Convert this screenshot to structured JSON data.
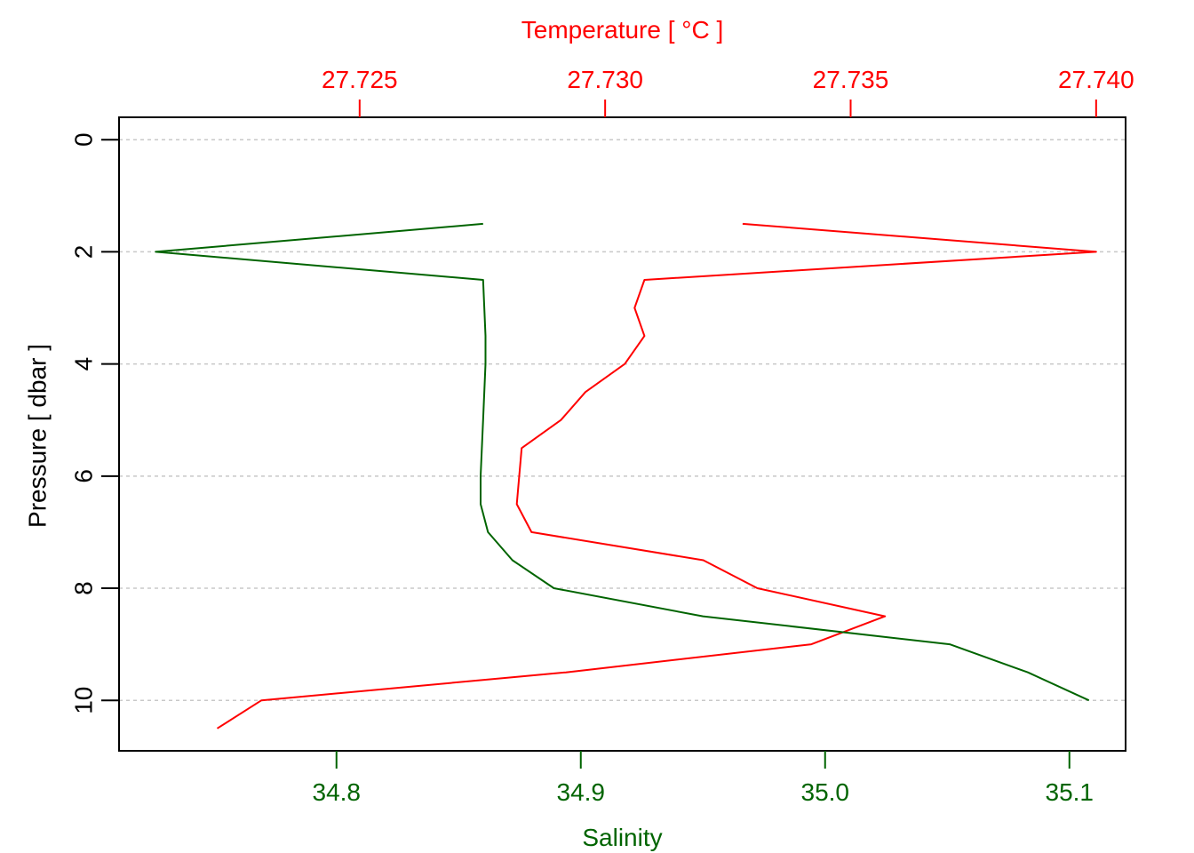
{
  "chart_data": {
    "type": "line",
    "ylabel": "Pressure [ dbar ]",
    "ylim": [
      10.9,
      -0.4
    ],
    "y_ticks": [
      0,
      2,
      4,
      6,
      8,
      10
    ],
    "y_tick_labels": [
      "0",
      "2",
      "4",
      "6",
      "8",
      "10"
    ],
    "grid": true,
    "colors": {
      "temperature": "#ff0000",
      "salinity": "#006400",
      "grid": "#c8c8c8",
      "axis": "#000000"
    },
    "top_axis": {
      "label": "Temperature [ °C ]",
      "range": [
        27.7201,
        27.7406
      ],
      "ticks": [
        27.725,
        27.73,
        27.735,
        27.74
      ],
      "tick_labels": [
        "27.725",
        "27.730",
        "27.735",
        "27.740"
      ]
    },
    "bottom_axis": {
      "label": "Salinity",
      "range": [
        34.711,
        35.123
      ],
      "ticks": [
        34.8,
        34.9,
        35.0,
        35.1
      ],
      "tick_labels": [
        "34.8",
        "34.9",
        "35.0",
        "35.1"
      ]
    },
    "series": [
      {
        "key": "temperature",
        "axis": "top",
        "color": "#ff0000",
        "x": [
          27.7328,
          27.74,
          27.7308,
          27.7306,
          27.7308,
          27.7304,
          27.7296,
          27.7291,
          27.7283,
          27.7282,
          27.7285,
          27.732,
          27.7331,
          27.7357,
          27.7342,
          27.7292,
          27.723,
          27.7221
        ],
        "y": [
          1.5,
          2.0,
          2.5,
          3.0,
          3.5,
          4.0,
          4.5,
          5.0,
          5.5,
          6.5,
          7.0,
          7.5,
          8.0,
          8.5,
          9.0,
          9.5,
          10.0,
          10.5
        ]
      },
      {
        "key": "salinity",
        "axis": "bottom",
        "color": "#006400",
        "x": [
          34.86,
          34.726,
          34.86,
          34.861,
          34.861,
          34.86,
          34.859,
          34.859,
          34.862,
          34.872,
          34.889,
          34.95,
          35.051,
          35.083,
          35.108
        ],
        "y": [
          1.5,
          2.0,
          2.5,
          3.5,
          4.0,
          5.0,
          6.0,
          6.5,
          7.0,
          7.5,
          8.0,
          8.5,
          9.0,
          9.5,
          10.0
        ]
      }
    ]
  }
}
